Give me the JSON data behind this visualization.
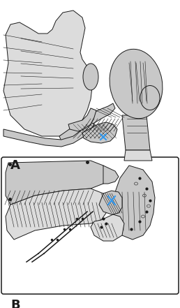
{
  "background_color": "#ffffff",
  "figure_width": 2.58,
  "figure_height": 4.41,
  "dpi": 100,
  "label_A": "A",
  "label_B": "B",
  "bone_fill": "#c8c8c8",
  "bone_fill_light": "#dcdcdc",
  "bone_fill_dark": "#b0b0b0",
  "line_color": "#1a1a1a",
  "blue_marker": "#3399ee",
  "lw_thin": 0.4,
  "lw_mid": 0.7,
  "lw_thick": 1.1
}
